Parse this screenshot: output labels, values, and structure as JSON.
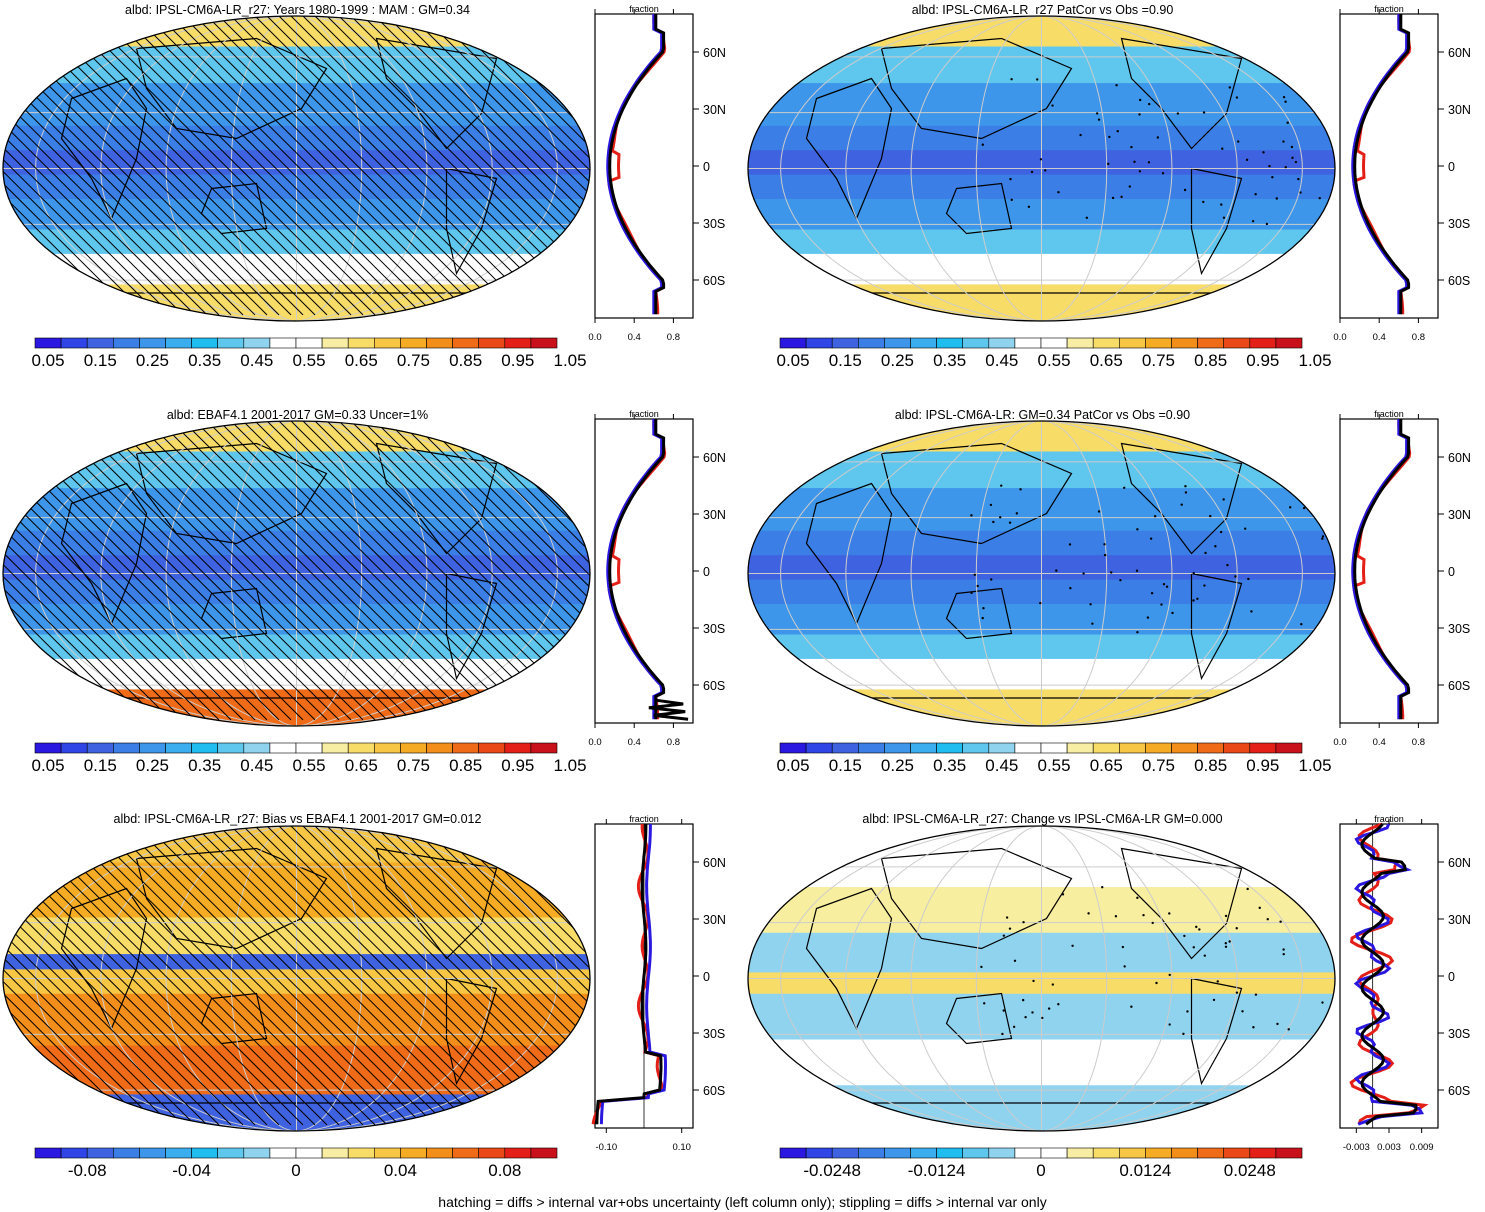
{
  "figure": {
    "footnote": "hatching = diffs > internal var+obs uncertainty (left column only); stippling = diffs > internal var only"
  },
  "colormaps": {
    "absolute": [
      "#2b18e0",
      "#3045e6",
      "#3f63e0",
      "#3a7ee6",
      "#3d96ea",
      "#3aaeee",
      "#20bdf0",
      "#5fc7ee",
      "#8fd3ef",
      "#ffffff",
      "#ffffff",
      "#f7eea4",
      "#f8dc68",
      "#f6c644",
      "#f5ab24",
      "#f38e1a",
      "#ef6b17",
      "#ea4917",
      "#e31f18",
      "#c8111a"
    ],
    "diff": [
      "#2b18e0",
      "#3045e6",
      "#3f63e0",
      "#3a7ee6",
      "#3d96ea",
      "#3aaeee",
      "#20bdf0",
      "#5fc7ee",
      "#8fd3ef",
      "#ffffff",
      "#ffffff",
      "#f7eea4",
      "#f8dc68",
      "#f6c644",
      "#f5ab24",
      "#f38e1a",
      "#ef6b17",
      "#ea4917",
      "#e31f18",
      "#c8111a"
    ]
  },
  "panels": [
    {
      "title": "albd: IPSL-CM6A-LR_r27: Years 1980-1999 : MAM : GM=0.34",
      "map_style": "absolute",
      "hatching": true,
      "stippling": false,
      "colorbar_labels": [
        "0.05",
        "0.15",
        "0.25",
        "0.35",
        "0.45",
        "0.55",
        "0.65",
        "0.75",
        "0.85",
        "0.95",
        "1.05"
      ],
      "colormap": "absolute",
      "zonal": {
        "xlabel": "fraction",
        "xticks": [
          "0.0",
          "0.4",
          "0.8"
        ],
        "xlim": [
          0,
          1.0
        ],
        "ylabels": [
          "60N",
          "30N",
          "0",
          "30S",
          "60S"
        ],
        "profile": "absolute",
        "zero_line": false
      }
    },
    {
      "title": "albd: IPSL-CM6A-LR_r27 PatCor vs Obs =0.90",
      "map_style": "absolute_smooth",
      "hatching": false,
      "stippling": true,
      "colorbar_labels": [
        "0.05",
        "0.15",
        "0.25",
        "0.35",
        "0.45",
        "0.55",
        "0.65",
        "0.75",
        "0.85",
        "0.95",
        "1.05"
      ],
      "colormap": "absolute",
      "zonal": {
        "xlabel": "fraction",
        "xticks": [
          "0.0",
          "0.4",
          "0.8"
        ],
        "xlim": [
          0,
          1.0
        ],
        "ylabels": [
          "60N",
          "30N",
          "0",
          "30S",
          "60S"
        ],
        "profile": "absolute",
        "zero_line": false
      }
    },
    {
      "title": "albd: EBAF4.1 2001-2017 GM=0.33 Uncer=1%",
      "map_style": "obs",
      "hatching": true,
      "stippling": false,
      "colorbar_labels": [
        "0.05",
        "0.15",
        "0.25",
        "0.35",
        "0.45",
        "0.55",
        "0.65",
        "0.75",
        "0.85",
        "0.95",
        "1.05"
      ],
      "colormap": "absolute",
      "zonal": {
        "xlabel": "fraction",
        "xticks": [
          "0.0",
          "0.4",
          "0.8"
        ],
        "xlim": [
          0,
          1.0
        ],
        "ylabels": [
          "60N",
          "30N",
          "0",
          "30S",
          "60S"
        ],
        "profile": "obs",
        "zero_line": false
      }
    },
    {
      "title": "albd: IPSL-CM6A-LR: GM=0.34 PatCor vs Obs =0.90",
      "map_style": "absolute_smooth",
      "hatching": false,
      "stippling": true,
      "colorbar_labels": [
        "0.05",
        "0.15",
        "0.25",
        "0.35",
        "0.45",
        "0.55",
        "0.65",
        "0.75",
        "0.85",
        "0.95",
        "1.05"
      ],
      "colormap": "absolute",
      "zonal": {
        "xlabel": "fraction",
        "xticks": [
          "0.0",
          "0.4",
          "0.8"
        ],
        "xlim": [
          0,
          1.0
        ],
        "ylabels": [
          "60N",
          "30N",
          "0",
          "30S",
          "60S"
        ],
        "profile": "absolute",
        "zero_line": false
      }
    },
    {
      "title": "albd: IPSL-CM6A-LR_r27: Bias vs EBAF4.1 2001-2017 GM=0.012",
      "map_style": "bias",
      "hatching": true,
      "stippling": false,
      "colorbar_labels": [
        "-0.08",
        "-0.04",
        "0",
        "0.04",
        "0.08"
      ],
      "colormap": "diff",
      "zonal": {
        "xlabel": "fraction",
        "xticks": [
          "-0.10",
          "0.10"
        ],
        "xlim": [
          -0.13,
          0.13
        ],
        "ylabels": [
          "60N",
          "30N",
          "0",
          "30S",
          "60S"
        ],
        "profile": "bias",
        "zero_line": true
      }
    },
    {
      "title": "albd: IPSL-CM6A-LR_r27: Change vs IPSL-CM6A-LR GM=0.000",
      "map_style": "change",
      "hatching": false,
      "stippling": true,
      "colorbar_labels": [
        "-0.0248",
        "-0.0124",
        "0",
        "0.0124",
        "0.0248"
      ],
      "colormap": "diff",
      "zonal": {
        "xlabel": "fraction",
        "xticks": [
          "-0.003",
          "0.003",
          "0.009"
        ],
        "xlim": [
          -0.006,
          0.012
        ],
        "ylabels": [
          "60N",
          "30N",
          "0",
          "30S",
          "60S"
        ],
        "profile": "change",
        "zero_line": true
      }
    }
  ]
}
